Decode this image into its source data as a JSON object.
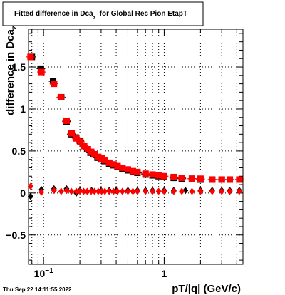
{
  "chart_data": {
    "type": "scatter",
    "title": {
      "prefix": "Fitted difference in Dca",
      "subscript": "z",
      "suffix": "  for Global Rec Pion EtapT"
    },
    "xlabel": "pT/|q| (GeV/c)",
    "ylabel": {
      "main": "difference in Dca",
      "subscript": "z"
    },
    "xscale": "log",
    "xlim": [
      0.075,
      4.5
    ],
    "ylim": [
      -0.85,
      1.95
    ],
    "xticks_labeled": [
      {
        "value": 0.1,
        "base": "10",
        "exp": "−1"
      },
      {
        "value": 1,
        "base": "1",
        "exp": ""
      }
    ],
    "yticks": [
      {
        "value": -0.5,
        "label": "−0.5"
      },
      {
        "value": 0,
        "label": "0"
      },
      {
        "value": 0.5,
        "label": "0.5"
      },
      {
        "value": 1,
        "label": "1"
      },
      {
        "value": 1.5,
        "label": "1.5"
      }
    ],
    "grid": true,
    "legend": "none",
    "timestamp": "Thu Sep 22 14:11:55 2022",
    "colors": {
      "series_black": "#000000",
      "series_red": "#ff0000",
      "grid": "#000000"
    },
    "series": [
      {
        "marker": "square",
        "color": "#000000",
        "points": [
          [
            0.08,
            1.62
          ],
          [
            0.095,
            1.48
          ],
          [
            0.12,
            1.33
          ],
          [
            0.14,
            1.14
          ],
          [
            0.155,
            0.85
          ],
          [
            0.17,
            0.7
          ],
          [
            0.185,
            0.66
          ],
          [
            0.2,
            0.62
          ],
          [
            0.215,
            0.56
          ],
          [
            0.23,
            0.52
          ],
          [
            0.245,
            0.48
          ],
          [
            0.26,
            0.46
          ],
          [
            0.28,
            0.42
          ],
          [
            0.3,
            0.4
          ],
          [
            0.32,
            0.38
          ],
          [
            0.35,
            0.35
          ],
          [
            0.38,
            0.33
          ],
          [
            0.41,
            0.31
          ],
          [
            0.45,
            0.29
          ],
          [
            0.5,
            0.27
          ],
          [
            0.55,
            0.25
          ],
          [
            0.6,
            0.24
          ],
          [
            0.7,
            0.22
          ],
          [
            0.8,
            0.21
          ],
          [
            0.9,
            0.2
          ],
          [
            1.0,
            0.19
          ],
          [
            1.2,
            0.18
          ],
          [
            1.4,
            0.17
          ],
          [
            1.7,
            0.17
          ],
          [
            2.0,
            0.16
          ],
          [
            2.5,
            0.16
          ],
          [
            3.0,
            0.16
          ],
          [
            3.5,
            0.16
          ],
          [
            4.2,
            0.16
          ]
        ]
      },
      {
        "marker": "square",
        "color": "#ff0000",
        "points": [
          [
            0.078,
            1.62
          ],
          [
            0.096,
            1.44
          ],
          [
            0.122,
            1.3
          ],
          [
            0.139,
            1.14
          ],
          [
            0.155,
            0.86
          ],
          [
            0.171,
            0.71
          ],
          [
            0.187,
            0.65
          ],
          [
            0.202,
            0.61
          ],
          [
            0.217,
            0.56
          ],
          [
            0.233,
            0.52
          ],
          [
            0.248,
            0.49
          ],
          [
            0.264,
            0.46
          ],
          [
            0.284,
            0.43
          ],
          [
            0.303,
            0.41
          ],
          [
            0.322,
            0.39
          ],
          [
            0.35,
            0.36
          ],
          [
            0.38,
            0.34
          ],
          [
            0.41,
            0.32
          ],
          [
            0.45,
            0.3
          ],
          [
            0.5,
            0.28
          ],
          [
            0.55,
            0.26
          ],
          [
            0.6,
            0.25
          ],
          [
            0.7,
            0.23
          ],
          [
            0.8,
            0.22
          ],
          [
            0.9,
            0.21
          ],
          [
            1.0,
            0.2
          ],
          [
            1.2,
            0.19
          ],
          [
            1.4,
            0.18
          ],
          [
            1.7,
            0.17
          ],
          [
            2.0,
            0.17
          ],
          [
            2.5,
            0.16
          ],
          [
            3.0,
            0.16
          ],
          [
            3.5,
            0.16
          ],
          [
            4.2,
            0.16
          ]
        ]
      },
      {
        "marker": "diamond",
        "color": "#000000",
        "points": [
          [
            0.078,
            -0.04
          ],
          [
            0.096,
            0.04
          ],
          [
            0.122,
            0.05
          ],
          [
            0.155,
            0.05
          ],
          [
            0.187,
            0.0
          ],
          [
            0.2,
            0.03
          ],
          [
            0.25,
            0.03
          ],
          [
            0.3,
            0.03
          ],
          [
            0.35,
            0.03
          ],
          [
            0.4,
            0.03
          ],
          [
            0.5,
            0.03
          ],
          [
            0.6,
            0.03
          ],
          [
            0.7,
            0.03
          ],
          [
            0.8,
            0.03
          ],
          [
            1.0,
            0.03
          ],
          [
            1.2,
            0.03
          ],
          [
            1.5,
            0.03
          ],
          [
            2.0,
            0.03
          ],
          [
            2.5,
            0.03
          ],
          [
            3.0,
            0.03
          ],
          [
            3.5,
            0.03
          ],
          [
            4.2,
            0.03
          ]
        ]
      },
      {
        "marker": "diamond",
        "color": "#ff0000",
        "points": [
          [
            0.078,
            0.08
          ],
          [
            0.096,
            0.01
          ],
          [
            0.122,
            0.03
          ],
          [
            0.14,
            0.02
          ],
          [
            0.155,
            0.03
          ],
          [
            0.17,
            0.02
          ],
          [
            0.187,
            0.02
          ],
          [
            0.2,
            0.02
          ],
          [
            0.215,
            0.02
          ],
          [
            0.23,
            0.02
          ],
          [
            0.248,
            0.02
          ],
          [
            0.264,
            0.02
          ],
          [
            0.284,
            0.02
          ],
          [
            0.303,
            0.02
          ],
          [
            0.322,
            0.02
          ],
          [
            0.35,
            0.02
          ],
          [
            0.38,
            0.02
          ],
          [
            0.41,
            0.02
          ],
          [
            0.45,
            0.02
          ],
          [
            0.5,
            0.02
          ],
          [
            0.55,
            0.02
          ],
          [
            0.6,
            0.02
          ],
          [
            0.7,
            0.02
          ],
          [
            0.8,
            0.02
          ],
          [
            0.9,
            0.02
          ],
          [
            1.0,
            0.02
          ],
          [
            1.2,
            0.02
          ],
          [
            1.4,
            0.02
          ],
          [
            1.7,
            0.02
          ],
          [
            2.0,
            0.02
          ],
          [
            2.5,
            0.02
          ],
          [
            3.0,
            0.02
          ],
          [
            3.5,
            0.02
          ],
          [
            4.2,
            0.02
          ]
        ]
      }
    ]
  }
}
